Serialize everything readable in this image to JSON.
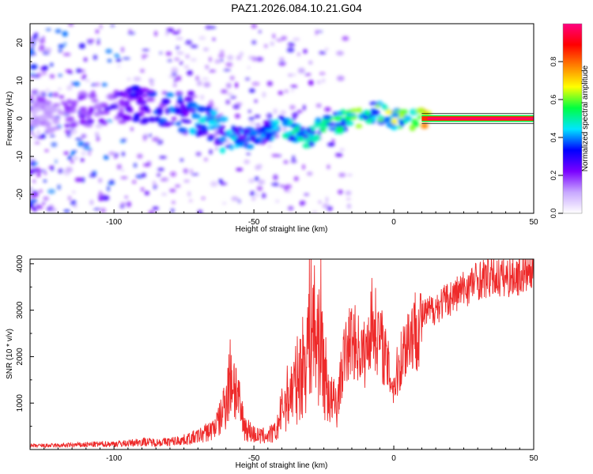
{
  "page": {
    "title": "PAZ1.2026.084.10.21.G04"
  },
  "chart_data": [
    {
      "type": "heatmap",
      "title": "",
      "xlabel": "Height of straight line (km)",
      "ylabel": "Frequency (Hz)",
      "xlim": [
        -130,
        50
      ],
      "ylim": [
        -25,
        25
      ],
      "xticks": [
        -100,
        -50,
        0,
        50
      ],
      "yticks": [
        -20,
        -10,
        0,
        10,
        20
      ],
      "colorbar": {
        "label": "Normalized spectral amplitude",
        "range": [
          0,
          1
        ],
        "ticks": [
          0.0,
          0.2,
          0.4,
          0.6,
          0.8
        ],
        "tick_labels": [
          "0.0",
          "0.2",
          "0.4",
          "0.6",
          "0.8"
        ],
        "colormap": [
          "#ffffff",
          "#c8a8ff",
          "#7a00ff",
          "#0000ff",
          "#00e5ff",
          "#00ff40",
          "#ffff00",
          "#ff8000",
          "#ff0000",
          "#ff0080"
        ]
      },
      "ridge": {
        "x": [
          -130,
          -115,
          -100,
          -90,
          -80,
          -70,
          -60,
          -50,
          -40,
          -30,
          -25,
          -20,
          -15,
          -10,
          -5,
          0,
          5,
          10,
          20,
          30,
          40,
          50
        ],
        "frequency": [
          0,
          2,
          3,
          3.5,
          2,
          0,
          -5,
          -5,
          -2,
          -5,
          -1,
          -1,
          0,
          1,
          2,
          0,
          0,
          0,
          0,
          0,
          0,
          0
        ],
        "amplitude": [
          0.15,
          0.2,
          0.25,
          0.3,
          0.35,
          0.4,
          0.45,
          0.35,
          0.45,
          0.45,
          0.5,
          0.5,
          0.55,
          0.55,
          0.55,
          0.6,
          0.6,
          0.8,
          0.95,
          1.0,
          1.0,
          1.0
        ]
      }
    },
    {
      "type": "line",
      "title": "",
      "xlabel": "Height of straight line (km)",
      "ylabel": "SNR (10 * v/v)",
      "xlim": [
        -130,
        50
      ],
      "ylim": [
        0,
        4100
      ],
      "xticks": [
        -100,
        -50,
        0,
        50
      ],
      "yticks": [
        1000,
        2000,
        3000,
        4000
      ],
      "line_color": "#ee2a2a",
      "series": [
        {
          "x": [
            -130,
            -120,
            -110,
            -100,
            -95,
            -90,
            -85,
            -80,
            -75,
            -70,
            -65,
            -62,
            -60,
            -58,
            -56,
            -55,
            -53,
            -50,
            -48,
            -45,
            -42,
            -40,
            -38,
            -35,
            -32,
            -30,
            -29,
            -28,
            -26,
            -25,
            -22,
            -20,
            -18,
            -15,
            -12,
            -10,
            -8,
            -6,
            -4,
            -2,
            0,
            2,
            5,
            8,
            10,
            15,
            20,
            25,
            30,
            35,
            40,
            45,
            50
          ],
          "values": [
            80,
            90,
            110,
            130,
            140,
            180,
            160,
            180,
            220,
            300,
            450,
            700,
            1200,
            1750,
            1300,
            900,
            500,
            350,
            300,
            320,
            400,
            900,
            1200,
            1500,
            2000,
            2800,
            3100,
            2500,
            2700,
            1800,
            1000,
            1100,
            2000,
            2500,
            2200,
            2100,
            2900,
            2600,
            2300,
            1800,
            1400,
            1900,
            2500,
            2700,
            2900,
            3100,
            3300,
            3500,
            3700,
            3750,
            3750,
            3800,
            3900
          ]
        }
      ]
    }
  ]
}
